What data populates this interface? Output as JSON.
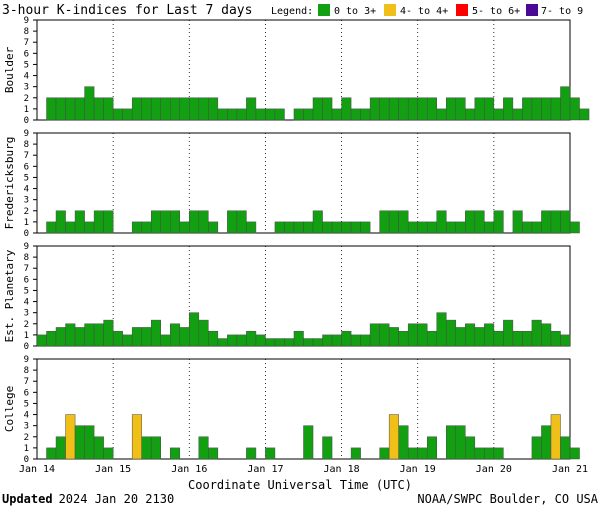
{
  "header": {
    "title": "3-hour K-indices for Last 7 days",
    "legend_label": "Legend:",
    "legend_items": [
      {
        "label": "0 to 3+",
        "color": "#12a012"
      },
      {
        "label": "4- to 4+",
        "color": "#f0c018"
      },
      {
        "label": "5- to 6+",
        "color": "#ff0000"
      },
      {
        "label": "7- to 9",
        "color": "#4b0a96"
      }
    ]
  },
  "footer": {
    "updated_label": "Updated",
    "updated_time": "2024 Jan 20 2130",
    "source": "NOAA/SWPC Boulder, CO USA"
  },
  "chart_data": {
    "type": "bar",
    "xlabel": "Coordinate Universal Time (UTC)",
    "x_ticks": [
      "Jan 14",
      "Jan 15",
      "Jan 16",
      "Jan 17",
      "Jan 18",
      "Jan 19",
      "Jan 20",
      "Jan 21"
    ],
    "y_ticks": [
      "0",
      "1",
      "2",
      "3",
      "4",
      "5",
      "6",
      "7",
      "8",
      "9"
    ],
    "ylim": [
      0,
      9
    ],
    "grid": "dotted",
    "panels": [
      {
        "name": "Boulder",
        "values": [
          0,
          2,
          2,
          2,
          2,
          3,
          2,
          2,
          1,
          1,
          2,
          2,
          2,
          2,
          2,
          2,
          2,
          2,
          2,
          1,
          1,
          1,
          2,
          1,
          1,
          1,
          0,
          1,
          1,
          2,
          2,
          1,
          2,
          1,
          1,
          2,
          2,
          2,
          2,
          2,
          2,
          2,
          1,
          2,
          2,
          1,
          2,
          2,
          1,
          2,
          1,
          2,
          2,
          2,
          2,
          3,
          2,
          1,
          0
        ]
      },
      {
        "name": "Fredericksburg",
        "values": [
          0,
          1,
          2,
          1,
          2,
          1,
          2,
          2,
          0,
          0,
          1,
          1,
          2,
          2,
          2,
          1,
          2,
          2,
          1,
          0,
          2,
          2,
          1,
          0,
          0,
          1,
          1,
          1,
          1,
          2,
          1,
          1,
          1,
          1,
          1,
          0,
          2,
          2,
          2,
          1,
          1,
          1,
          2,
          1,
          1,
          2,
          2,
          1,
          2,
          0,
          2,
          1,
          1,
          2,
          2,
          2,
          1,
          0
        ]
      },
      {
        "name": "Est. Planetary",
        "values": [
          1,
          1.33,
          1.67,
          2,
          1.67,
          2,
          2,
          2.33,
          1.33,
          1,
          1.67,
          1.67,
          2.33,
          1,
          2,
          1.67,
          3,
          2.33,
          1.33,
          0.67,
          1,
          1,
          1.33,
          1,
          0.67,
          0.67,
          0.67,
          1.33,
          0.67,
          0.67,
          1,
          1,
          1.33,
          1,
          1,
          2,
          2,
          1.67,
          1.33,
          2,
          2,
          1.33,
          3,
          2.33,
          1.67,
          2,
          1.67,
          2,
          1.33,
          2.33,
          1.33,
          1.33,
          2.33,
          2,
          1.33,
          1
        ]
      },
      {
        "name": "College",
        "values": [
          0,
          1,
          2,
          4,
          3,
          3,
          2,
          1,
          0,
          0,
          4,
          2,
          2,
          0,
          1,
          0,
          0,
          2,
          1,
          0,
          0,
          0,
          1,
          0,
          1,
          0,
          0,
          0,
          3,
          0,
          2,
          0,
          0,
          1,
          0,
          0,
          1,
          4,
          3,
          1,
          1,
          2,
          0,
          3,
          3,
          2,
          1,
          1,
          1,
          0,
          0,
          0,
          2,
          3,
          4,
          2,
          1,
          0
        ]
      }
    ],
    "thresholds": [
      {
        "min": 0,
        "max": 3.99,
        "color": "#12a012"
      },
      {
        "min": 4,
        "max": 4.99,
        "color": "#f0c018"
      },
      {
        "min": 5,
        "max": 6.99,
        "color": "#ff0000"
      },
      {
        "min": 7,
        "max": 9,
        "color": "#4b0a96"
      }
    ]
  }
}
